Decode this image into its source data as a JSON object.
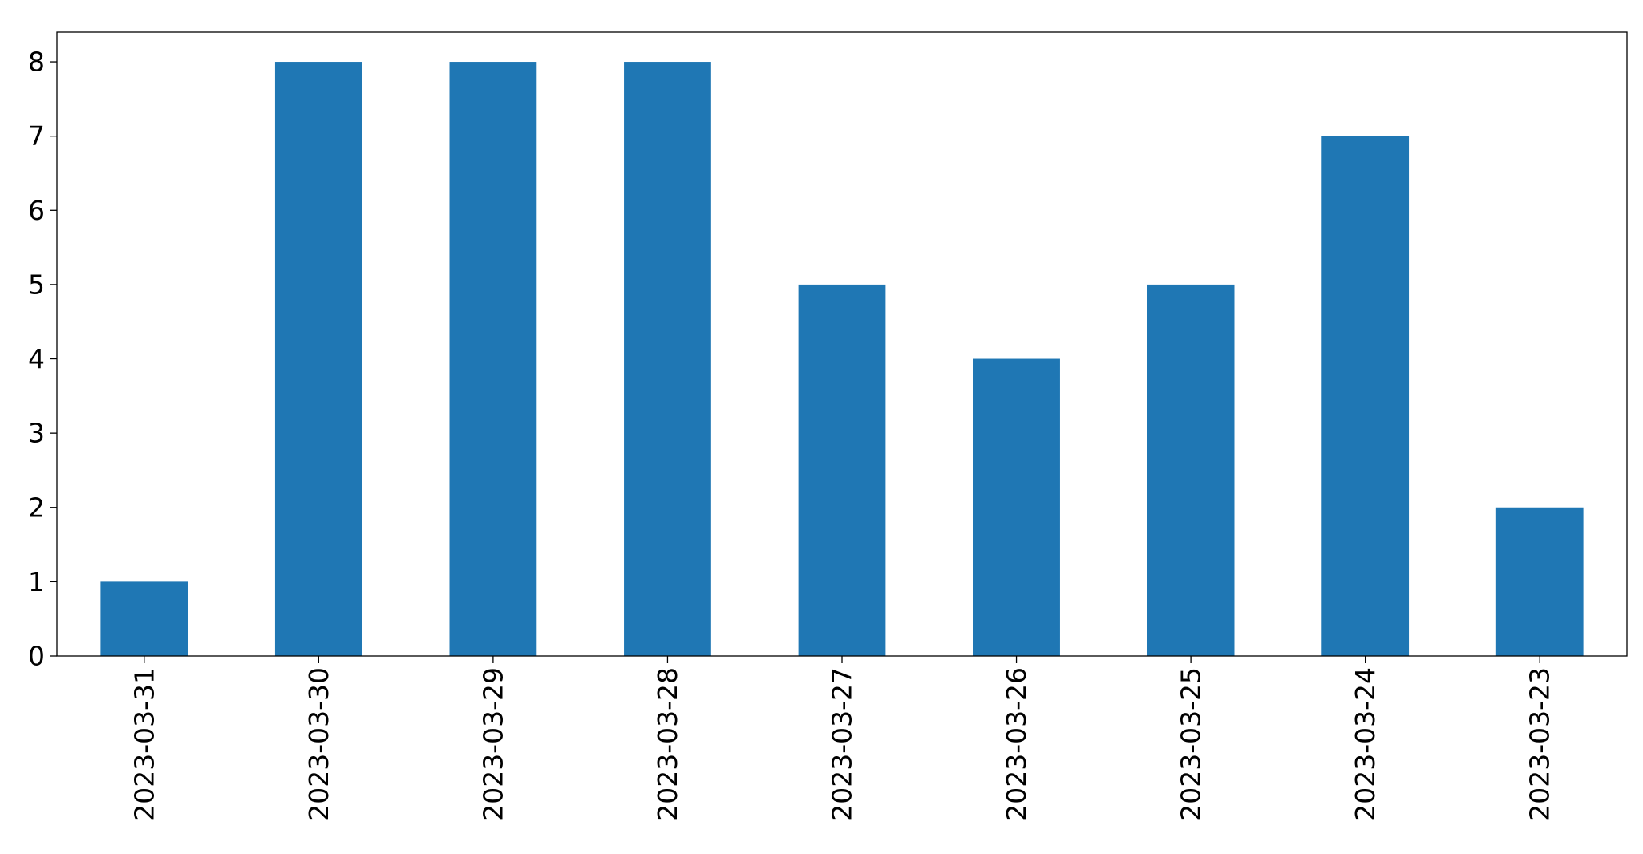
{
  "chart_data": {
    "type": "bar",
    "title": "",
    "xlabel": "",
    "ylabel": "",
    "categories": [
      "2023-03-31",
      "2023-03-30",
      "2023-03-29",
      "2023-03-28",
      "2023-03-27",
      "2023-03-26",
      "2023-03-25",
      "2023-03-24",
      "2023-03-23"
    ],
    "values": [
      1,
      8,
      8,
      8,
      5,
      4,
      5,
      7,
      2
    ],
    "ylim": [
      0,
      8.4
    ],
    "yticks": [
      0,
      1,
      2,
      3,
      4,
      5,
      6,
      7,
      8
    ],
    "grid": false,
    "legend": "none",
    "bar_color": "#1f77b4",
    "axis_color": "#000000"
  }
}
